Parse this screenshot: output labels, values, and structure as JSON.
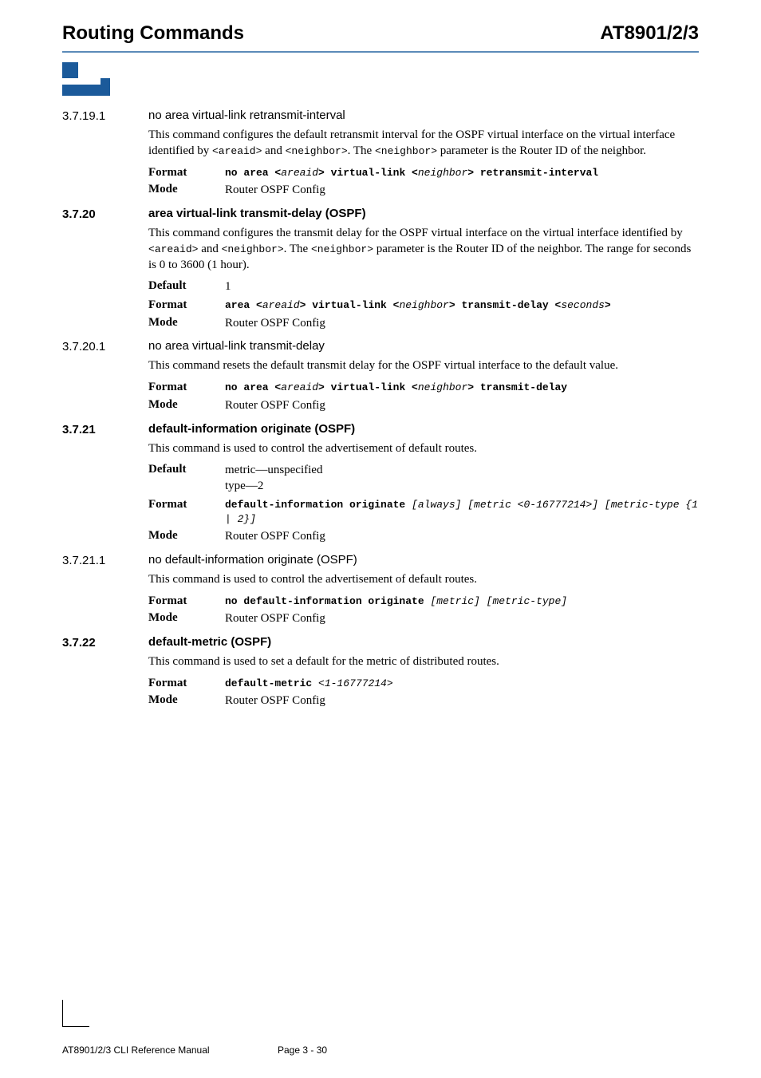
{
  "header": {
    "left": "Routing Commands",
    "right": "AT8901/2/3"
  },
  "footer": {
    "left": "AT8901/2/3 CLI Reference Manual",
    "page": "Page 3 - 30"
  },
  "s37191": {
    "num": "3.7.19.1",
    "title": "no area virtual-link retransmit-interval",
    "desc_a": "This command configures the default retransmit interval for the OSPF virtual interface on the virtual interface identified by ",
    "desc_b": " and ",
    "desc_c": ". The ",
    "desc_d": " parameter is the Router ID of the neighbor.",
    "desc_m1": "<areaid>",
    "desc_m2": "<neighbor>",
    "desc_m3": "<neighbor>",
    "format_a": "no area <",
    "format_b": "areaid",
    "format_c": "> virtual-link <",
    "format_d": "neighbor",
    "format_e": "> retransmit-interval",
    "mode": "Router OSPF Config",
    "k_format": "Format",
    "k_mode": "Mode"
  },
  "s3720": {
    "num": "3.7.20",
    "title": "area virtual-link transmit-delay (OSPF)",
    "desc_a": "This command configures the transmit delay for the OSPF virtual interface on the virtual interface identified by ",
    "desc_b": " and ",
    "desc_c": ". The ",
    "desc_d": " parameter is the Router ID of the neighbor. The range for seconds is 0 to 3600 (1 hour).",
    "desc_m1": "<areaid>",
    "desc_m2": "<neighbor>",
    "desc_m3": "<neighbor>",
    "default": "1",
    "format_a": "area <",
    "format_b": "areaid",
    "format_c": "> virtual-link <",
    "format_d": "neighbor",
    "format_e": "> transmit-delay <",
    "format_f": "seconds",
    "format_g": ">",
    "mode": "Router OSPF Config",
    "k_default": "Default",
    "k_format": "Format",
    "k_mode": "Mode"
  },
  "s37201": {
    "num": "3.7.20.1",
    "title": "no area virtual-link transmit-delay",
    "desc": "This command resets the default transmit delay for the OSPF virtual interface to the default value.",
    "format_a": "no area <",
    "format_b": "areaid",
    "format_c": "> virtual-link <",
    "format_d": "neighbor",
    "format_e": "> transmit-delay",
    "mode": "Router OSPF Config",
    "k_format": "Format",
    "k_mode": "Mode"
  },
  "s3721": {
    "num": "3.7.21",
    "title": "default-information originate (OSPF)",
    "desc": "This command is used to control the advertisement of default routes.",
    "default1": "metric—unspecified",
    "default2": "type—2",
    "format_a": "default-information originate ",
    "format_b": "[always] [metric <0-16777214>] [metric-type {1 | 2}]",
    "mode": "Router OSPF Config",
    "k_default": "Default",
    "k_format": "Format",
    "k_mode": "Mode"
  },
  "s37211": {
    "num": "3.7.21.1",
    "title": "no default-information originate (OSPF)",
    "desc": "This command is used to control the advertisement of default routes.",
    "format_a": "no default-information originate ",
    "format_b": "[metric] [metric-type]",
    "mode": "Router OSPF Config",
    "k_format": "Format",
    "k_mode": "Mode"
  },
  "s3722": {
    "num": "3.7.22",
    "title": "default-metric (OSPF)",
    "desc": "This command is used to set a default for the metric of distributed routes.",
    "format_a": "default-metric ",
    "format_b": "<1-16777214>",
    "mode": "Router OSPF Config",
    "k_format": "Format",
    "k_mode": "Mode"
  }
}
